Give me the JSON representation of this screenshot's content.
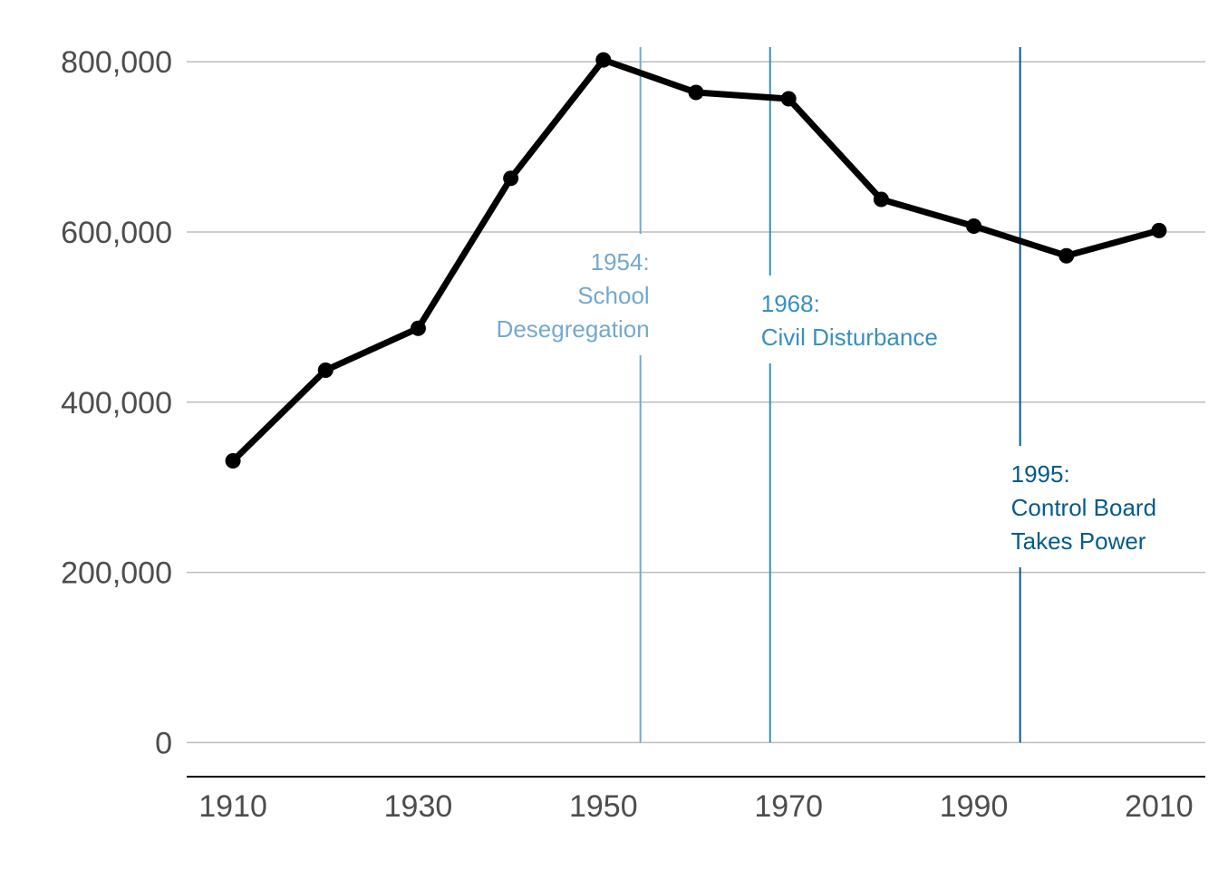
{
  "chart_data": {
    "type": "line",
    "x": [
      1910,
      1920,
      1930,
      1940,
      1950,
      1960,
      1970,
      1980,
      1990,
      2000,
      2010
    ],
    "series": [
      {
        "values": [
          331069,
          437571,
          486869,
          663091,
          802178,
          763956,
          756510,
          638333,
          606900,
          572059,
          601723
        ]
      }
    ],
    "xlim": [
      1905,
      2015
    ],
    "ylim": [
      -40000,
      830000
    ],
    "x_ticks": [
      1910,
      1930,
      1950,
      1970,
      1990,
      2010
    ],
    "x_tick_labels": [
      "1910",
      "1930",
      "1950",
      "1970",
      "1990",
      "2010"
    ],
    "y_ticks": [
      0,
      200000,
      400000,
      600000,
      800000
    ],
    "y_tick_labels": [
      "0",
      "200,000",
      "400,000",
      "600,000",
      "800,000"
    ],
    "grid": "horizontal",
    "line_color": "#000000",
    "annotations": [
      {
        "year": 1954,
        "lines": [
          "1954:",
          "School",
          "Desegregation"
        ],
        "color": "#74a9cf",
        "align": "right"
      },
      {
        "year": 1968,
        "lines": [
          "1968:",
          "Civil Disturbance"
        ],
        "color": "#3690c0",
        "align": "left"
      },
      {
        "year": 1995,
        "lines": [
          "1995:",
          "Control Board",
          "Takes Power"
        ],
        "color": "#045a8d",
        "align": "left"
      }
    ]
  }
}
